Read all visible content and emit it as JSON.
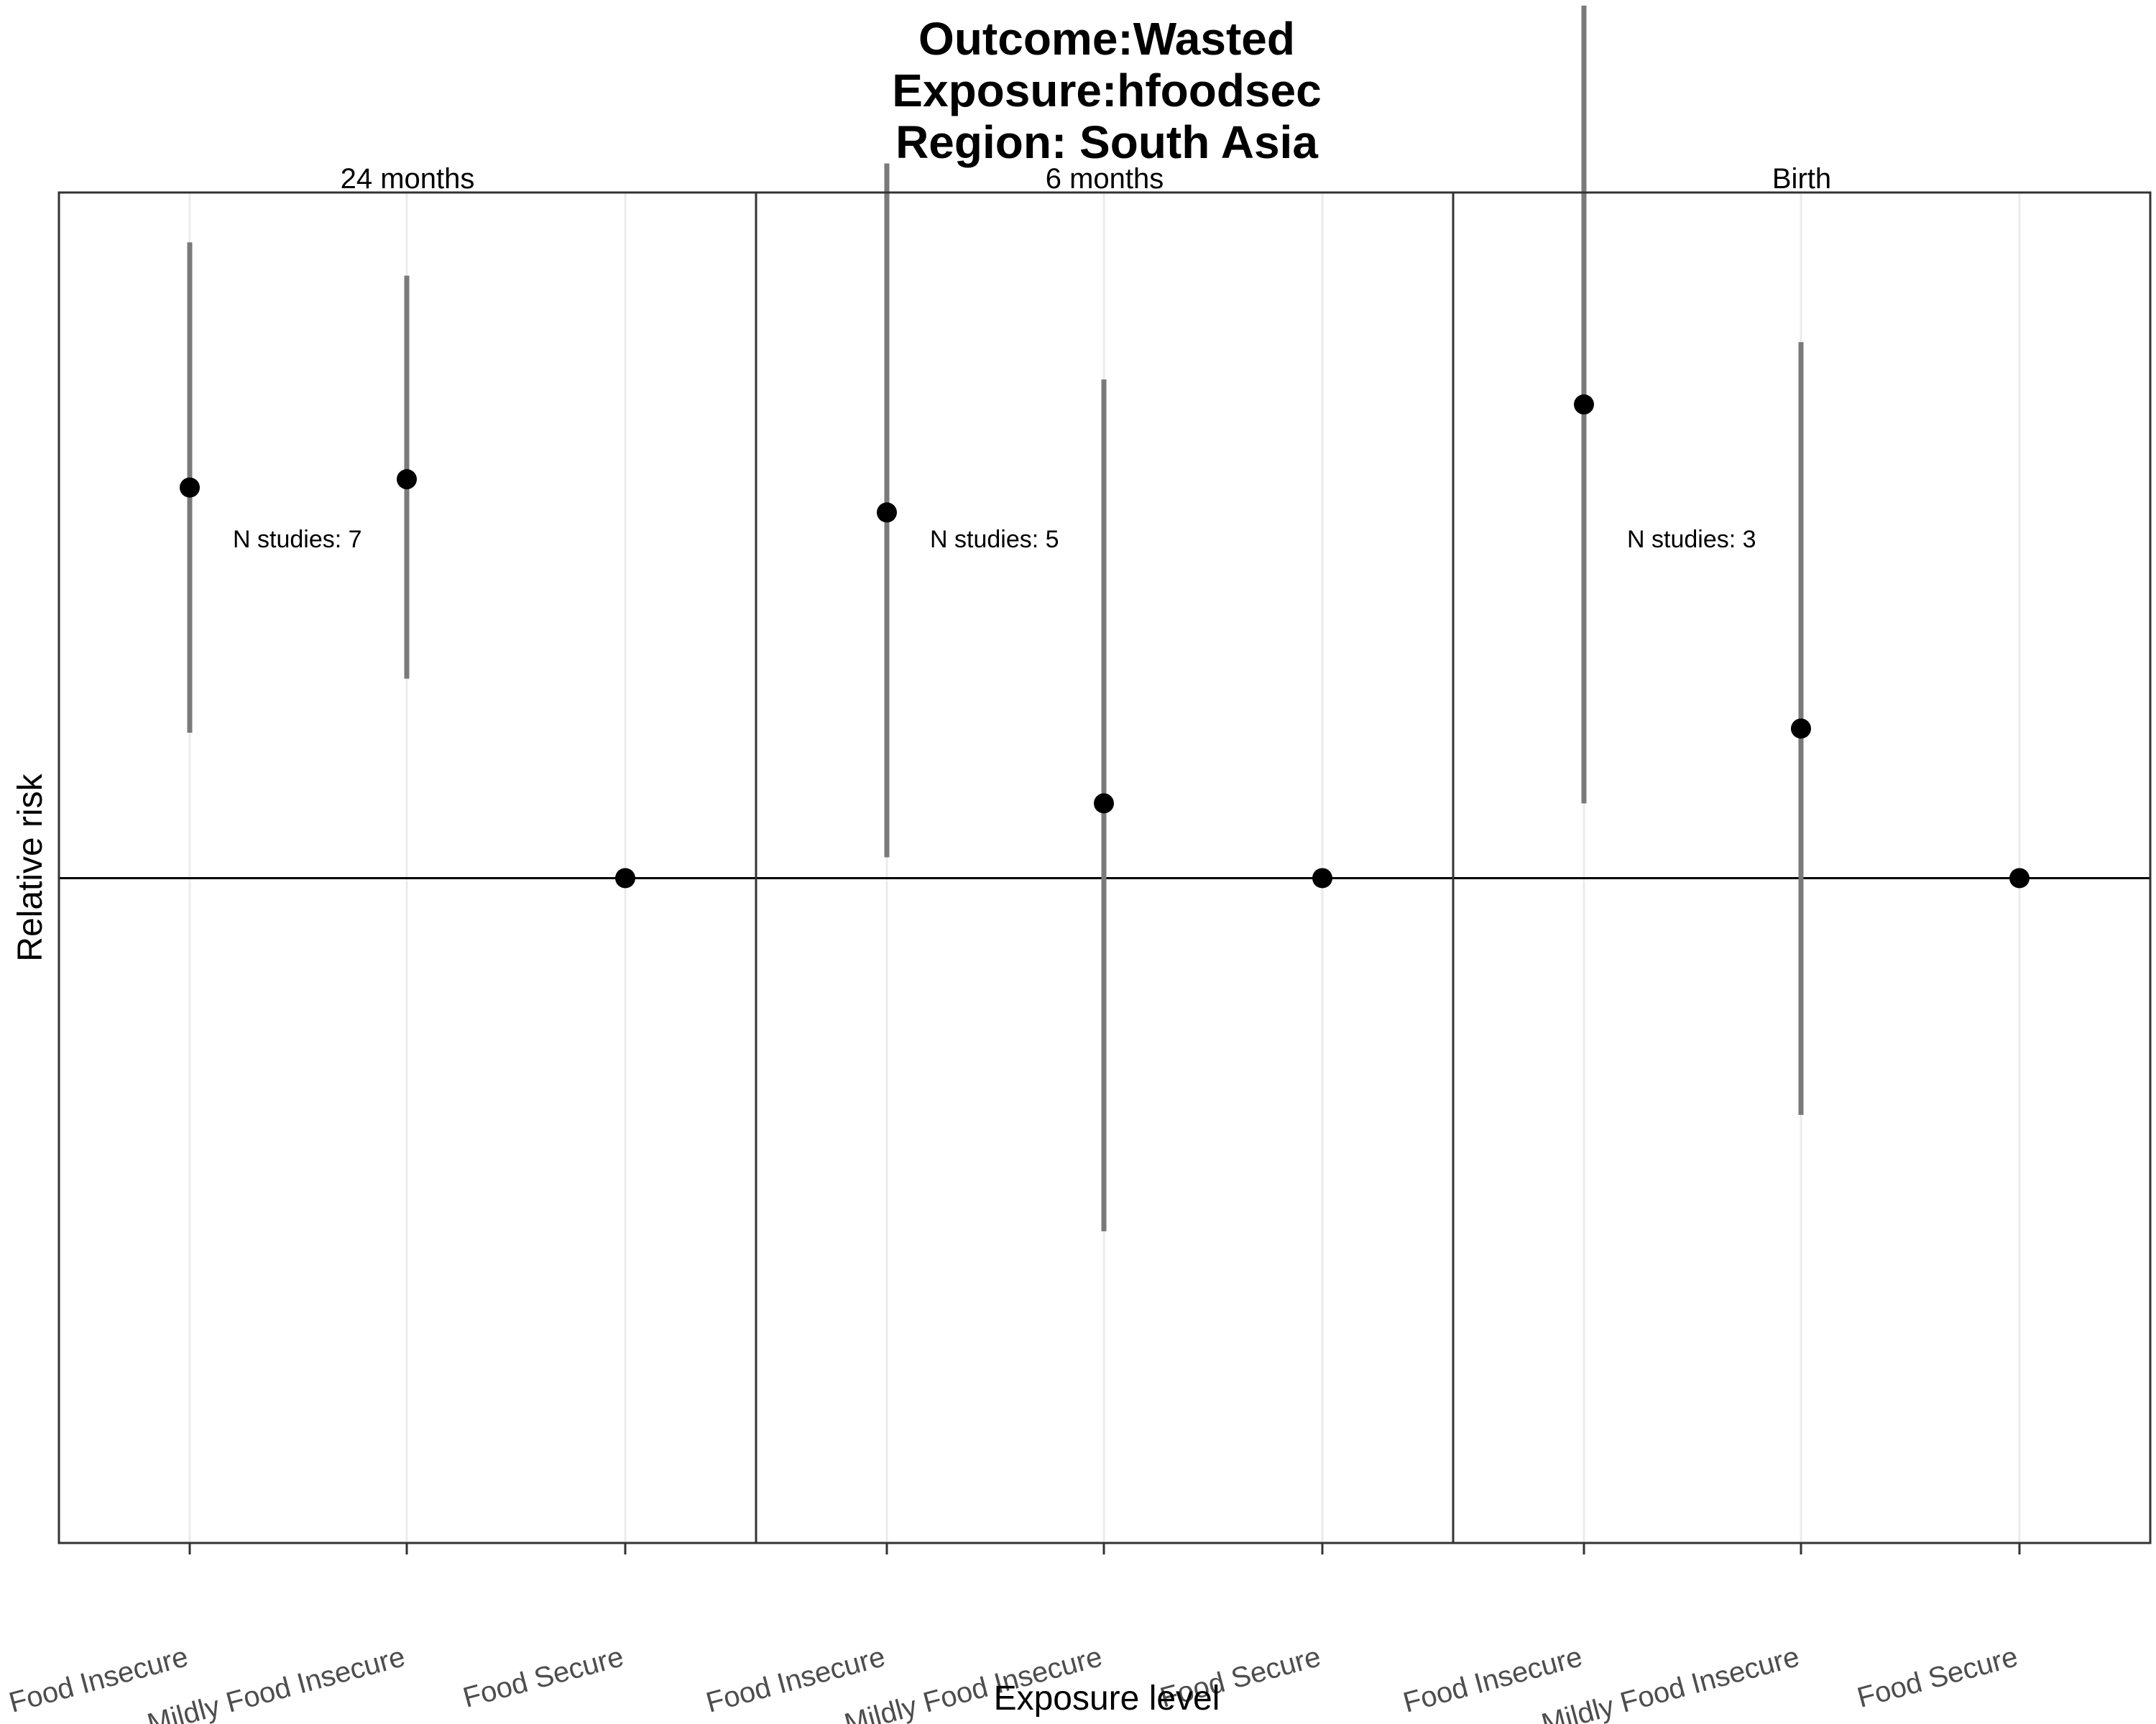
{
  "chart_data": {
    "type": "scatter",
    "title": [
      "Outcome:Wasted",
      "Exposure:hfoodsec",
      "Region: South Asia"
    ],
    "xlabel": "Exposure level",
    "ylabel": "Relative risk",
    "categories": [
      "Food Insecure",
      "Mildly Food Insecure",
      "Food Secure"
    ],
    "ylim": [
      0.84,
      1.165
    ],
    "y_ticks_visible": false,
    "reference_line": 1.0,
    "grid": "vertical-major",
    "panels": [
      {
        "label": "24 months",
        "annotation": "N studies: 7",
        "points": [
          {
            "x": "Food Insecure",
            "estimate": 1.094,
            "lower": 1.035,
            "upper": 1.153
          },
          {
            "x": "Mildly Food Insecure",
            "estimate": 1.096,
            "lower": 1.048,
            "upper": 1.145
          },
          {
            "x": "Food Secure",
            "estimate": 1.0,
            "lower": 1.0,
            "upper": 1.0
          }
        ]
      },
      {
        "label": "6 months",
        "annotation": "N studies: 5",
        "points": [
          {
            "x": "Food Insecure",
            "estimate": 1.088,
            "lower": 1.005,
            "upper": 1.172
          },
          {
            "x": "Mildly Food Insecure",
            "estimate": 1.018,
            "lower": 0.915,
            "upper": 1.12
          },
          {
            "x": "Food Secure",
            "estimate": 1.0,
            "lower": 1.0,
            "upper": 1.0
          }
        ]
      },
      {
        "label": "Birth",
        "annotation": "N studies: 3",
        "points": [
          {
            "x": "Food Insecure",
            "estimate": 1.114,
            "lower": 1.018,
            "upper": 1.21
          },
          {
            "x": "Mildly Food Insecure",
            "estimate": 1.036,
            "lower": 0.943,
            "upper": 1.129
          },
          {
            "x": "Food Secure",
            "estimate": 1.0,
            "lower": 1.0,
            "upper": 1.0
          }
        ]
      }
    ]
  },
  "colors": {
    "errorbar": "#7a7a7a",
    "point": "#000000",
    "grid": "#ebebeb",
    "panel_border": "#333333",
    "reference_line": "#000000"
  }
}
